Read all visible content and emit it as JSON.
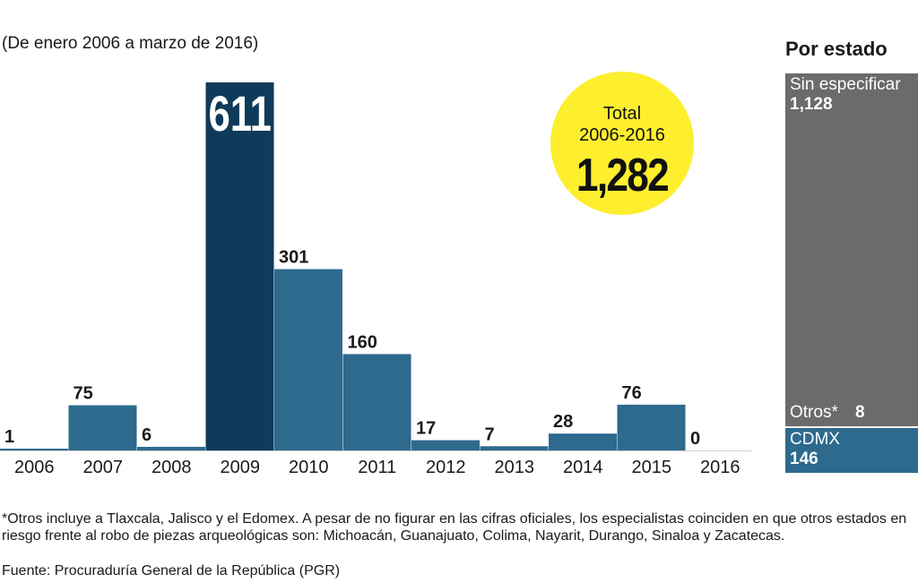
{
  "subtitle": "(De enero 2006 a marzo de 2016)",
  "chart_data": {
    "type": "bar",
    "categories": [
      "2006",
      "2007",
      "2008",
      "2009",
      "2010",
      "2011",
      "2012",
      "2013",
      "2014",
      "2015",
      "2016"
    ],
    "values": [
      1,
      75,
      6,
      611,
      301,
      160,
      17,
      7,
      28,
      76,
      0
    ],
    "value_labels": [
      "1",
      "75",
      "6",
      "611",
      "301",
      "160",
      "17",
      "7",
      "28",
      "76",
      "0"
    ],
    "highlight_index": 3,
    "ylim": [
      0,
      611
    ],
    "colors": {
      "bar": "#2d6a8e",
      "highlight": "#0f3a5a"
    }
  },
  "total": {
    "label_line1": "Total",
    "label_line2": "2006-2016",
    "value": "1,282",
    "color": "#fdee2e"
  },
  "by_state": {
    "title": "Por estado",
    "segments": [
      {
        "label": "Sin especificar",
        "value": "1,128",
        "color": "#6b6b6b"
      },
      {
        "label": "Otros*",
        "value": "8",
        "color": "#6b6b6b"
      },
      {
        "label": "CDMX",
        "value": "146",
        "color": "#2d6a8e"
      }
    ]
  },
  "footnote": "*Otros incluye a Tlaxcala, Jalisco y el Edomex. A pesar de no figurar en las cifras oficiales, los especialistas coinciden en que otros estados en riesgo frente al robo de piezas arqueológicas son: Michoacán, Guanajuato, Colima, Nayarit, Durango, Sinaloa y Zacatecas.",
  "source": "Fuente: Procuraduría General de la República (PGR)"
}
